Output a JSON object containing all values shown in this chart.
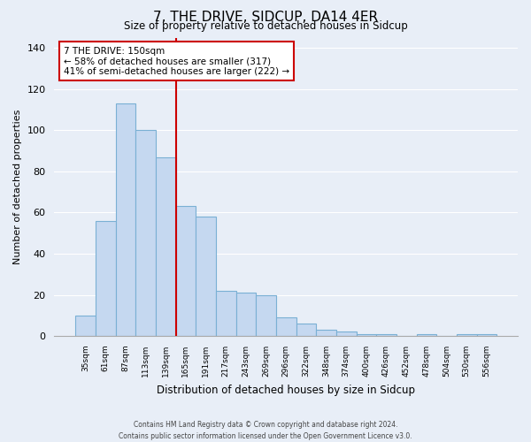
{
  "title": "7, THE DRIVE, SIDCUP, DA14 4ER",
  "subtitle": "Size of property relative to detached houses in Sidcup",
  "xlabel": "Distribution of detached houses by size in Sidcup",
  "ylabel": "Number of detached properties",
  "bar_labels": [
    "35sqm",
    "61sqm",
    "87sqm",
    "113sqm",
    "139sqm",
    "165sqm",
    "191sqm",
    "217sqm",
    "243sqm",
    "269sqm",
    "296sqm",
    "322sqm",
    "348sqm",
    "374sqm",
    "400sqm",
    "426sqm",
    "452sqm",
    "478sqm",
    "504sqm",
    "530sqm",
    "556sqm"
  ],
  "bar_values": [
    10,
    56,
    113,
    100,
    87,
    63,
    58,
    22,
    21,
    20,
    9,
    6,
    3,
    2,
    1,
    1,
    0,
    1,
    0,
    1,
    1
  ],
  "bar_color": "#c5d8f0",
  "bar_edge_color": "#7ab0d4",
  "ylim": [
    0,
    145
  ],
  "yticks": [
    0,
    20,
    40,
    60,
    80,
    100,
    120,
    140
  ],
  "vline_x": 4.5,
  "vline_color": "#cc0000",
  "annotation_title": "7 THE DRIVE: 150sqm",
  "annotation_line1": "← 58% of detached houses are smaller (317)",
  "annotation_line2": "41% of semi-detached houses are larger (222) →",
  "annotation_box_color": "#ffffff",
  "annotation_box_edge": "#cc0000",
  "background_color": "#e8eef7",
  "grid_color": "#ffffff",
  "footer_line1": "Contains HM Land Registry data © Crown copyright and database right 2024.",
  "footer_line2": "Contains public sector information licensed under the Open Government Licence v3.0."
}
